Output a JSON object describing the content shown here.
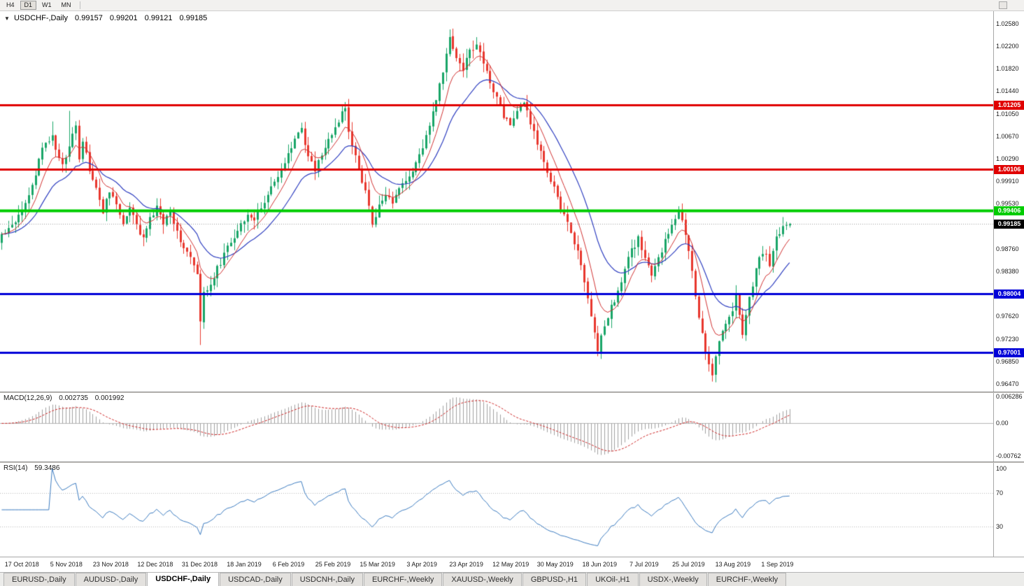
{
  "toolbar": {
    "timeframes": [
      {
        "label": "H4",
        "active": false
      },
      {
        "label": "D1",
        "active": true
      },
      {
        "label": "W1",
        "active": false
      },
      {
        "label": "MN",
        "active": false
      }
    ]
  },
  "chart_header": {
    "dropdown_icon": "▼",
    "symbol": "USDCHF-,Daily",
    "open": "0.99157",
    "high": "0.99201",
    "low": "0.99121",
    "close": "0.99185"
  },
  "chart_data": {
    "type": "candlestick",
    "symbol": "USDCHF-",
    "timeframe": "Daily",
    "ohlc_current": {
      "open": 0.99157,
      "high": 0.99201,
      "low": 0.99121,
      "close": 0.99185
    },
    "x_labels": [
      "17 Oct 2018",
      "5 Nov 2018",
      "23 Nov 2018",
      "12 Dec 2018",
      "31 Dec 2018",
      "18 Jan 2019",
      "6 Feb 2019",
      "25 Feb 2019",
      "15 Mar 2019",
      "3 Apr 2019",
      "23 Apr 2019",
      "12 May 2019",
      "30 May 2019",
      "18 Jun 2019",
      "7 Jul 2019",
      "25 Jul 2019",
      "13 Aug 2019",
      "1 Sep 2019"
    ],
    "price_panel": {
      "y_max": 1.0279,
      "y_min": 0.9634,
      "y_ticks": [
        1.0258,
        1.022,
        1.0182,
        1.0144,
        1.0105,
        1.0067,
        1.0029,
        0.9991,
        0.9953,
        0.9876,
        0.9838,
        0.9762,
        0.9723,
        0.9685,
        0.9647
      ],
      "y_tick_labels": [
        "1.02580",
        "1.02200",
        "1.01820",
        "1.01440",
        "1.01050",
        "1.00670",
        "1.00290",
        "0.99910",
        "0.99530",
        "0.98760",
        "0.98380",
        "0.97620",
        "0.97230",
        "0.96850",
        "0.96470"
      ],
      "bars_total": 235,
      "right_margin_bars": 60,
      "first_label_bar": 6,
      "label_step": 13.2,
      "ma_fast_period": 8,
      "ma_slow_period": 20,
      "current_price": 0.99185,
      "current_price_label": "0.99185",
      "hlines": [
        {
          "price": 1.01205,
          "label": "1.01205",
          "color": "#e00000",
          "width": 3
        },
        {
          "price": 1.00106,
          "label": "1.00106",
          "color": "#e00000",
          "width": 3
        },
        {
          "price": 0.99406,
          "label": "0.99406",
          "color": "#00cc00",
          "width": 4
        },
        {
          "price": 0.98004,
          "label": "0.98004",
          "color": "#0000d8",
          "width": 3
        },
        {
          "price": 0.97001,
          "label": "0.97001",
          "color": "#0000d8",
          "width": 3
        }
      ],
      "colors": {
        "up": "#18a567",
        "down": "#e8362d",
        "ma_fast": "#d03030",
        "ma_slow": "#2f3fc0",
        "current_line": "#999999",
        "current_badge": "#000000"
      },
      "close_waypoints": [
        [
          0,
          0.99
        ],
        [
          2,
          0.9912
        ],
        [
          4,
          0.9925
        ],
        [
          6,
          0.9945
        ],
        [
          8,
          0.997
        ],
        [
          10,
          1.0
        ],
        [
          11,
          1.003
        ],
        [
          13,
          1.0055
        ],
        [
          15,
          1.007
        ],
        [
          16,
          1.0045
        ],
        [
          18,
          1.0015
        ],
        [
          20,
          1.005
        ],
        [
          21,
          1.0075
        ],
        [
          22,
          1.009
        ],
        [
          23,
          1.003
        ],
        [
          24,
          1.006
        ],
        [
          26,
          1.001
        ],
        [
          28,
          0.9975
        ],
        [
          30,
          0.994
        ],
        [
          32,
          0.9975
        ],
        [
          34,
          0.995
        ],
        [
          36,
          0.992
        ],
        [
          38,
          0.9945
        ],
        [
          40,
          0.9915
        ],
        [
          42,
          0.9895
        ],
        [
          44,
          0.9925
        ],
        [
          46,
          0.9945
        ],
        [
          48,
          0.992
        ],
        [
          50,
          0.994
        ],
        [
          52,
          0.9905
        ],
        [
          54,
          0.988
        ],
        [
          56,
          0.986
        ],
        [
          58,
          0.983
        ],
        [
          59,
          0.975
        ],
        [
          60,
          0.98
        ],
        [
          62,
          0.9818
        ],
        [
          64,
          0.9842
        ],
        [
          66,
          0.9866
        ],
        [
          68,
          0.9888
        ],
        [
          70,
          0.9908
        ],
        [
          73,
          0.9938
        ],
        [
          75,
          0.9922
        ],
        [
          77,
          0.9948
        ],
        [
          79,
          0.9968
        ],
        [
          81,
          0.9988
        ],
        [
          83,
          1.0005
        ],
        [
          85,
          1.0038
        ],
        [
          87,
          1.0062
        ],
        [
          89,
          1.0078
        ],
        [
          91,
          1.0032
        ],
        [
          93,
          1.0008
        ],
        [
          95,
          1.0038
        ],
        [
          97,
          1.0058
        ],
        [
          99,
          1.0082
        ],
        [
          101,
          1.0105
        ],
        [
          102,
          1.0112
        ],
        [
          103,
          1.0072
        ],
        [
          105,
          1.0032
        ],
        [
          107,
          0.9992
        ],
        [
          109,
          0.9948
        ],
        [
          110,
          0.9918
        ],
        [
          112,
          0.9948
        ],
        [
          114,
          0.9968
        ],
        [
          116,
          0.9952
        ],
        [
          118,
          0.9978
        ],
        [
          120,
          0.9992
        ],
        [
          122,
          1.0008
        ],
        [
          124,
          1.0032
        ],
        [
          126,
          1.0068
        ],
        [
          128,
          1.0108
        ],
        [
          130,
          1.0152
        ],
        [
          132,
          1.0205
        ],
        [
          133,
          1.0232
        ],
        [
          135,
          1.02
        ],
        [
          137,
          1.0182
        ],
        [
          139,
          1.0212
        ],
        [
          141,
          1.0222
        ],
        [
          143,
          1.0192
        ],
        [
          145,
          1.0162
        ],
        [
          147,
          1.0132
        ],
        [
          149,
          1.0102
        ],
        [
          151,
          1.0088
        ],
        [
          153,
          1.0112
        ],
        [
          155,
          1.0122
        ],
        [
          157,
          1.0092
        ],
        [
          159,
          1.0052
        ],
        [
          161,
          1.0022
        ],
        [
          163,
          0.9992
        ],
        [
          165,
          0.9962
        ],
        [
          167,
          0.9932
        ],
        [
          169,
          0.9902
        ],
        [
          171,
          0.9872
        ],
        [
          173,
          0.9822
        ],
        [
          175,
          0.9762
        ],
        [
          177,
          0.9708
        ],
        [
          179,
          0.9742
        ],
        [
          181,
          0.9778
        ],
        [
          183,
          0.9802
        ],
        [
          185,
          0.9842
        ],
        [
          187,
          0.9872
        ],
        [
          189,
          0.9892
        ],
        [
          191,
          0.9862
        ],
        [
          193,
          0.9832
        ],
        [
          195,
          0.9858
        ],
        [
          197,
          0.9888
        ],
        [
          199,
          0.9922
        ],
        [
          201,
          0.994
        ],
        [
          203,
          0.99
        ],
        [
          205,
          0.9838
        ],
        [
          207,
          0.976
        ],
        [
          209,
          0.97
        ],
        [
          211,
          0.9666
        ],
        [
          213,
          0.9722
        ],
        [
          215,
          0.9748
        ],
        [
          217,
          0.9775
        ],
        [
          218,
          0.98
        ],
        [
          219,
          0.9762
        ],
        [
          220,
          0.9734
        ],
        [
          222,
          0.9792
        ],
        [
          224,
          0.9842
        ],
        [
          226,
          0.9872
        ],
        [
          228,
          0.9852
        ],
        [
          230,
          0.9892
        ],
        [
          232,
          0.9916
        ],
        [
          234,
          0.99185
        ]
      ],
      "wick_spikes": [
        {
          "bar": 15,
          "high": 1.0092
        },
        {
          "bar": 20,
          "high": 1.011
        },
        {
          "bar": 59,
          "low": 0.9713
        },
        {
          "bar": 89,
          "high": 1.009
        },
        {
          "bar": 101,
          "high": 1.0121
        },
        {
          "bar": 133,
          "high": 1.0248
        },
        {
          "bar": 141,
          "high": 1.0235
        },
        {
          "bar": 177,
          "low": 0.9694
        },
        {
          "bar": 211,
          "low": 0.9651
        },
        {
          "bar": 220,
          "low": 0.9724
        }
      ]
    },
    "macd_panel": {
      "label": "MACD(12,26,9)",
      "value_main": "0.002735",
      "value_signal": "0.001992",
      "params": [
        12,
        26,
        9
      ],
      "y_max": 0.006286,
      "y_min": -0.00762,
      "y_tick_labels": [
        "0.006286",
        "0.00",
        "-0.00762"
      ],
      "colors": {
        "histogram": "#a0a0a0",
        "signal": "#cc2222",
        "zero_line": "#b4b4b4"
      }
    },
    "rsi_panel": {
      "label": "RSI(14)",
      "value": "59.3486",
      "period": 14,
      "levels": [
        100,
        70,
        30
      ],
      "level_labels": [
        "100",
        "70",
        "30"
      ],
      "drawn_levels": [
        70,
        30
      ],
      "colors": {
        "line": "#3a7abf",
        "level": "#b8b8b8"
      }
    }
  },
  "tabs": [
    {
      "label": "EURUSD-,Daily",
      "active": false
    },
    {
      "label": "AUDUSD-,Daily",
      "active": false
    },
    {
      "label": "USDCHF-,Daily",
      "active": true
    },
    {
      "label": "USDCAD-,Daily",
      "active": false
    },
    {
      "label": "USDCNH-,Daily",
      "active": false
    },
    {
      "label": "EURCHF-,Weekly",
      "active": false
    },
    {
      "label": "XAUUSD-,Weekly",
      "active": false
    },
    {
      "label": "GBPUSD-,H1",
      "active": false
    },
    {
      "label": "UKOil-,H1",
      "active": false
    },
    {
      "label": "USDX-,Weekly",
      "active": false
    },
    {
      "label": "EURCHF-,Weekly",
      "active": false
    }
  ]
}
